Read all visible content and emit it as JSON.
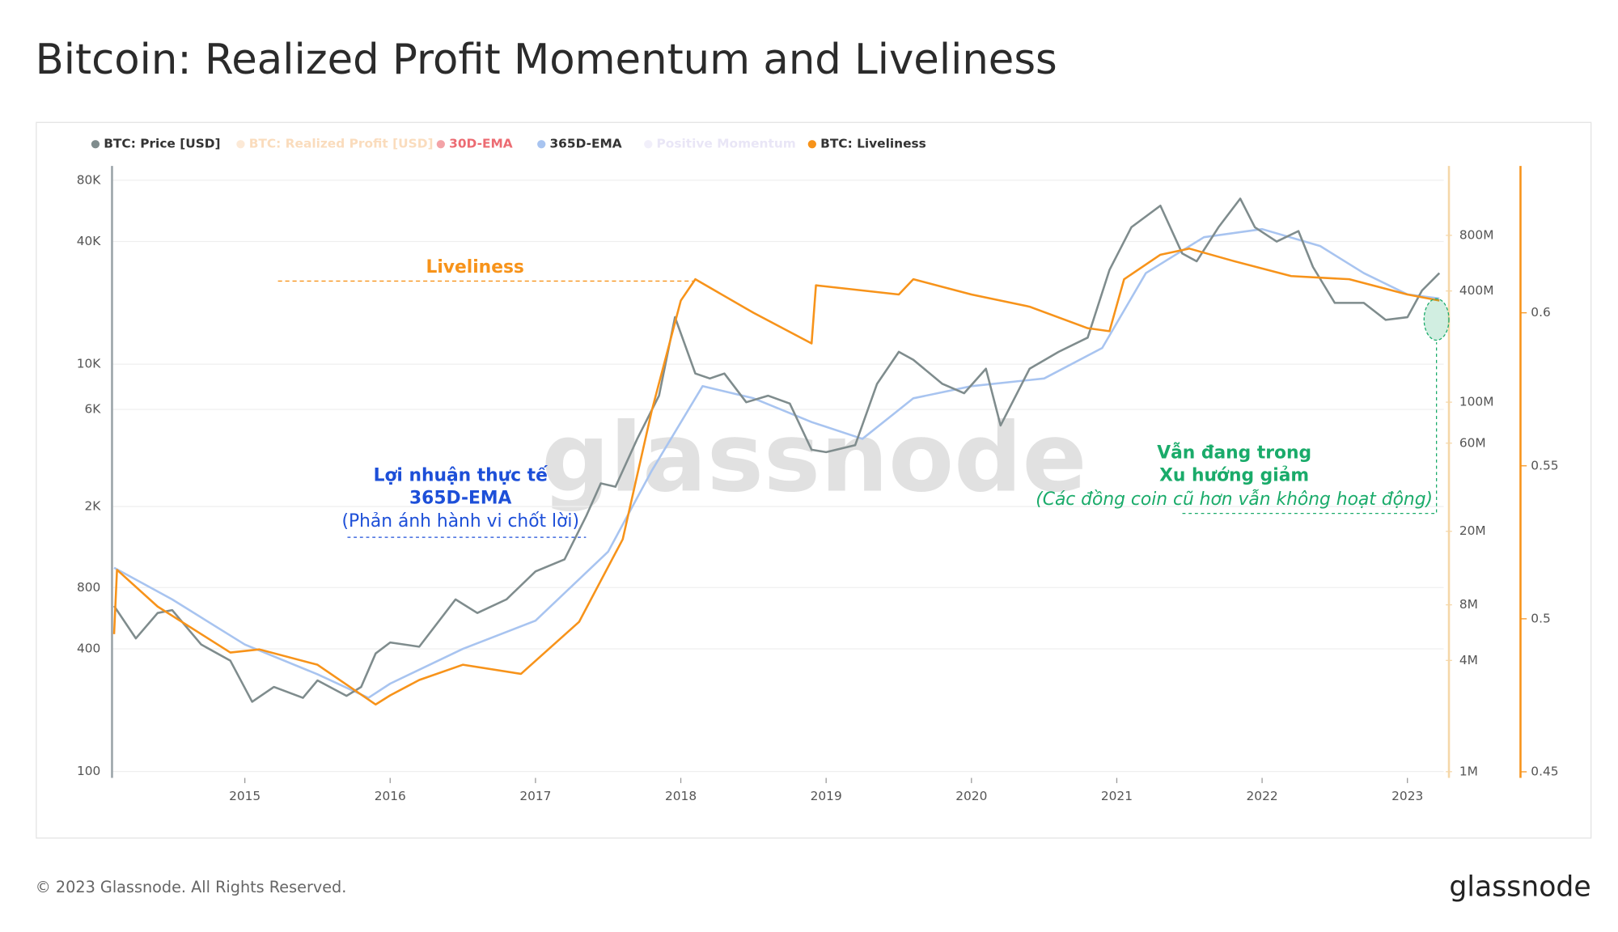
{
  "chart_data": {
    "type": "line",
    "title": "Bitcoin: Realized Profit Momentum and Liveliness",
    "watermark": "glassnode",
    "log_y": true,
    "log_y2": true,
    "xlim": [
      2014.086,
      2023.25
    ],
    "xticks": [
      2015,
      2016,
      2017,
      2018,
      2019,
      2020,
      2021,
      2022,
      2023
    ],
    "ylim": [
      93,
      94000
    ],
    "yticks": [
      100,
      400,
      800,
      {
        "value": 2000,
        "label": "2K"
      },
      {
        "value": 6000,
        "label": "6K"
      },
      {
        "value": 10000,
        "label": "10K"
      },
      {
        "value": 40000,
        "label": "40K"
      },
      {
        "value": 80000,
        "label": "80K"
      }
    ],
    "y2lim": [
      925000,
      1900000000
    ],
    "y2ticks": [
      {
        "value": 1000000,
        "label": "1M"
      },
      {
        "value": 4000000,
        "label": "4M"
      },
      {
        "value": 8000000,
        "label": "8M"
      },
      {
        "value": 20000000,
        "label": "20M"
      },
      {
        "value": 60000000,
        "label": "60M"
      },
      {
        "value": 100000000,
        "label": "100M"
      },
      {
        "value": 400000000,
        "label": "400M"
      },
      {
        "value": 800000000,
        "label": "800M"
      }
    ],
    "y3lim": [
      0.448,
      0.648
    ],
    "y3ticks": [
      0.45,
      0.5,
      0.55,
      0.6
    ],
    "series": [
      {
        "name": "BTC: Price [USD]",
        "color": "#7f8c8d",
        "enabled": true,
        "axis": "y",
        "x": [
          2014.1,
          2014.25,
          2014.4,
          2014.5,
          2014.7,
          2014.9,
          2015.05,
          2015.2,
          2015.4,
          2015.5,
          2015.7,
          2015.8,
          2015.9,
          2016.0,
          2016.2,
          2016.45,
          2016.6,
          2016.8,
          2017.0,
          2017.2,
          2017.35,
          2017.45,
          2017.55,
          2017.7,
          2017.85,
          2017.96,
          2018.1,
          2018.2,
          2018.3,
          2018.45,
          2018.6,
          2018.75,
          2018.9,
          2019.0,
          2019.2,
          2019.35,
          2019.5,
          2019.6,
          2019.8,
          2019.95,
          2020.1,
          2020.2,
          2020.4,
          2020.6,
          2020.8,
          2020.95,
          2021.1,
          2021.3,
          2021.45,
          2021.55,
          2021.7,
          2021.85,
          2021.95,
          2022.1,
          2022.25,
          2022.35,
          2022.5,
          2022.7,
          2022.85,
          2023.0,
          2023.1,
          2023.22
        ],
        "values": [
          650,
          450,
          600,
          620,
          420,
          350,
          220,
          260,
          230,
          280,
          235,
          260,
          380,
          430,
          410,
          700,
          600,
          700,
          960,
          1100,
          1800,
          2600,
          2500,
          4300,
          7000,
          17000,
          9000,
          8500,
          9000,
          6500,
          7000,
          6400,
          3800,
          3700,
          4000,
          8000,
          11500,
          10500,
          8000,
          7200,
          9500,
          5000,
          9500,
          11500,
          13500,
          29000,
          47000,
          60000,
          35000,
          32000,
          47000,
          65000,
          47000,
          40000,
          45000,
          30000,
          20000,
          20000,
          16500,
          17000,
          23000,
          28000
        ]
      },
      {
        "name": "BTC: Realized Profit [USD]",
        "color": "#f9d4ad",
        "enabled": false
      },
      {
        "name": "30D-EMA",
        "color": "#e8474f",
        "enabled": false
      },
      {
        "name": "365D-EMA",
        "color": "#a8c4f0",
        "enabled": true,
        "axis": "y",
        "x": [
          2014.1,
          2014.5,
          2015.0,
          2015.5,
          2015.85,
          2016.0,
          2016.5,
          2017.0,
          2017.5,
          2017.8,
          2018.15,
          2018.5,
          2018.9,
          2019.25,
          2019.6,
          2020.0,
          2020.5,
          2020.9,
          2021.2,
          2021.6,
          2022.0,
          2022.4,
          2022.7,
          2023.0,
          2023.22
        ],
        "values": [
          1000,
          700,
          420,
          300,
          230,
          270,
          400,
          550,
          1200,
          3000,
          7800,
          6800,
          5200,
          4300,
          6800,
          7800,
          8500,
          12000,
          28000,
          42000,
          46000,
          38000,
          28000,
          22000,
          21000
        ]
      },
      {
        "name": "Positive Momentum",
        "color": "#e4e0f5",
        "enabled": false
      },
      {
        "name": "BTC: Liveliness",
        "color": "#f7931a",
        "enabled": true,
        "axis": "y3",
        "x": [
          2014.1,
          2014.12,
          2014.4,
          2014.9,
          2015.1,
          2015.5,
          2015.9,
          2016.0,
          2016.2,
          2016.5,
          2016.9,
          2017.3,
          2017.6,
          2017.8,
          2018.0,
          2018.1,
          2018.5,
          2018.9,
          2018.93,
          2019.5,
          2019.6,
          2020.0,
          2020.4,
          2020.8,
          2020.95,
          2021.05,
          2021.3,
          2021.5,
          2021.8,
          2022.2,
          2022.6,
          2023.0,
          2023.22
        ],
        "values": [
          0.495,
          0.516,
          0.504,
          0.489,
          0.49,
          0.485,
          0.472,
          0.475,
          0.48,
          0.485,
          0.482,
          0.499,
          0.526,
          0.568,
          0.604,
          0.611,
          0.6,
          0.59,
          0.609,
          0.606,
          0.611,
          0.606,
          0.602,
          0.595,
          0.594,
          0.611,
          0.619,
          0.621,
          0.617,
          0.612,
          0.611,
          0.606,
          0.604
        ]
      }
    ],
    "annotations": {
      "liveliness": "Liveliness",
      "profit": [
        "Lợi nhuận thực tế",
        "365D-EMA",
        "(Phản ánh hành vi chốt lời)"
      ],
      "trend": [
        "Vẫn đang trong",
        "Xu hướng giảm",
        "(Các đồng coin cũ hơn vẫn không hoạt động)"
      ]
    }
  },
  "footer": {
    "copyright": "© 2023 Glassnode. All Rights Reserved.",
    "brand": "glassnode"
  }
}
